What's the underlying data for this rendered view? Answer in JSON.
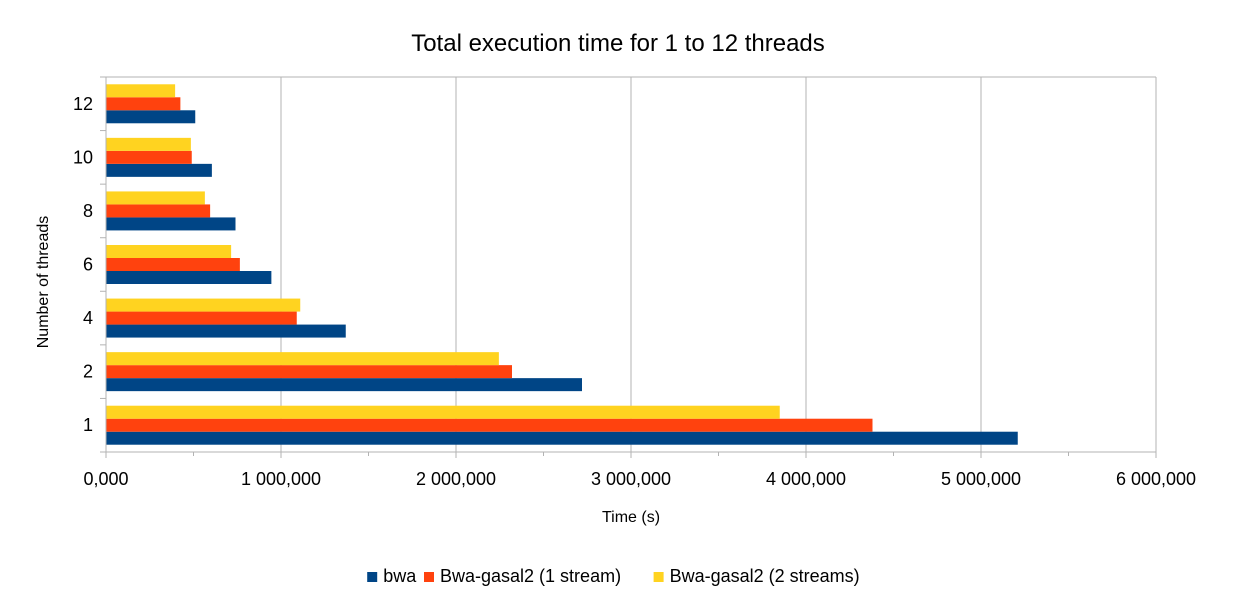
{
  "chart_data": {
    "type": "bar",
    "orientation": "horizontal",
    "title": "Total execution time for 1 to 12 threads",
    "xlabel": "Time (s)",
    "ylabel": "Number of threads",
    "categories": [
      "1",
      "2",
      "4",
      "6",
      "8",
      "10",
      "12"
    ],
    "xlim": [
      0,
      6000000
    ],
    "x_ticks": [
      0,
      1000000,
      2000000,
      3000000,
      4000000,
      5000000,
      6000000
    ],
    "x_tick_labels": [
      "0,000",
      "1 000,000",
      "2 000,000",
      "3 000,000",
      "4 000,000",
      "5 000,000",
      "6 000,000"
    ],
    "grid": true,
    "legend_position": "bottom",
    "series": [
      {
        "name": "bwa",
        "color": "#004586",
        "values": [
          5210000,
          2720000,
          1370000,
          945000,
          740000,
          605000,
          510000
        ]
      },
      {
        "name": "Bwa-gasal2 (1 stream)",
        "color": "#ff420e",
        "values": [
          4380000,
          2320000,
          1090000,
          765000,
          595000,
          490000,
          425000
        ]
      },
      {
        "name": "Bwa-gasal2 (2 streams)",
        "color": "#ffd320",
        "values": [
          3850000,
          2245000,
          1110000,
          715000,
          565000,
          485000,
          395000
        ]
      }
    ]
  }
}
